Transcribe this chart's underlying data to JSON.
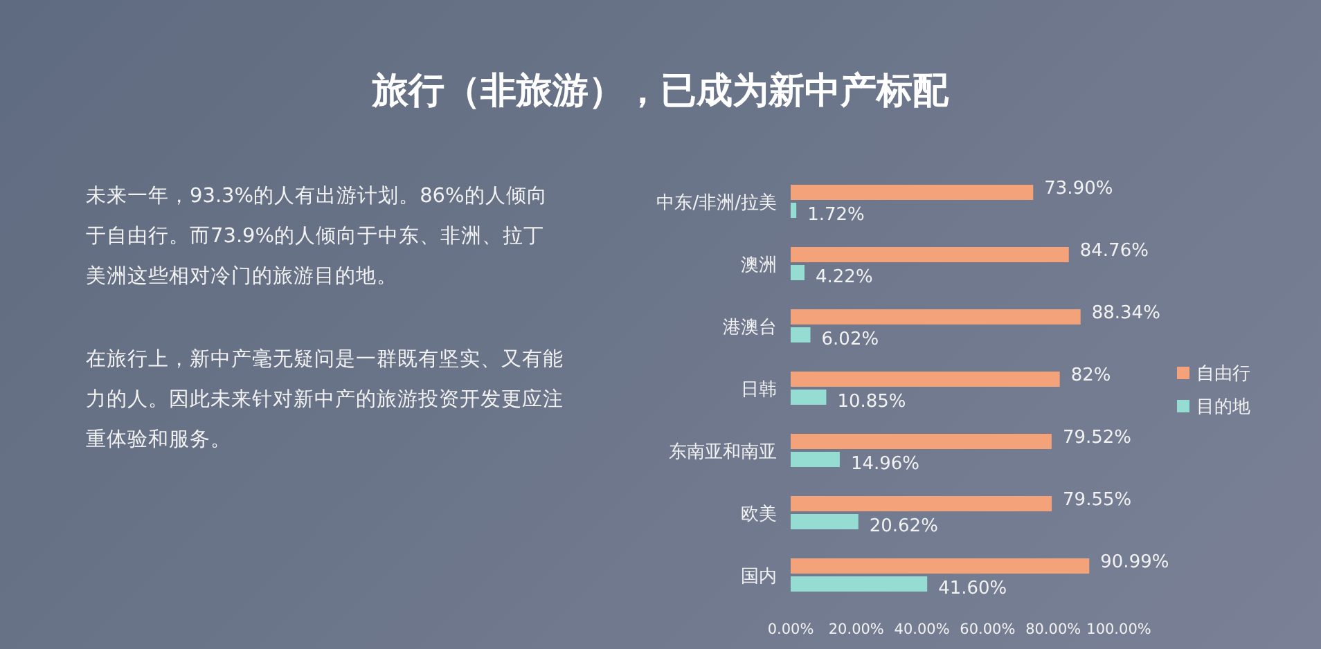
{
  "chart_data": {
    "type": "bar",
    "orientation": "horizontal",
    "title": "旅行（非旅游），已成为新中产标配",
    "annotations": [
      "未来一年，93.3%的人有出游计划。86%的人倾向于自由行。而73.9%的人倾向于中东、非洲、拉丁美洲这些相对冷门的旅游目的地。",
      "在旅行上，新中产毫无疑问是一群既有坚实、又有能力的人。因此未来针对新中产的旅游投资开发更应注重体验和服务。"
    ],
    "categories": [
      "中东/非洲/拉美",
      "澳洲",
      "港澳台",
      "日韩",
      "东南亚和南亚",
      "欧美",
      "国内"
    ],
    "series": [
      {
        "name": "自由行",
        "color": "#f4a27a",
        "values": [
          73.9,
          84.76,
          88.34,
          82,
          79.52,
          79.55,
          90.99
        ],
        "value_labels": [
          "73.90%",
          "84.76%",
          "88.34%",
          "82%",
          "79.52%",
          "79.55%",
          "90.99%"
        ]
      },
      {
        "name": "目的地",
        "color": "#95ddd2",
        "values": [
          1.72,
          4.22,
          6.02,
          10.85,
          14.96,
          20.62,
          41.6
        ],
        "value_labels": [
          "1.72%",
          "4.22%",
          "6.02%",
          "10.85%",
          "14.96%",
          "20.62%",
          "41.60%"
        ]
      }
    ],
    "xlim": [
      0,
      100
    ],
    "xticks": [
      {
        "value": 0,
        "label": "0.00%"
      },
      {
        "value": 20,
        "label": "20.00%"
      },
      {
        "value": 40,
        "label": "40.00%"
      },
      {
        "value": 60,
        "label": "60.00%"
      },
      {
        "value": 80,
        "label": "80.00%"
      },
      {
        "value": 100,
        "label": "100.00%"
      }
    ],
    "legend": "right",
    "grid": false
  }
}
